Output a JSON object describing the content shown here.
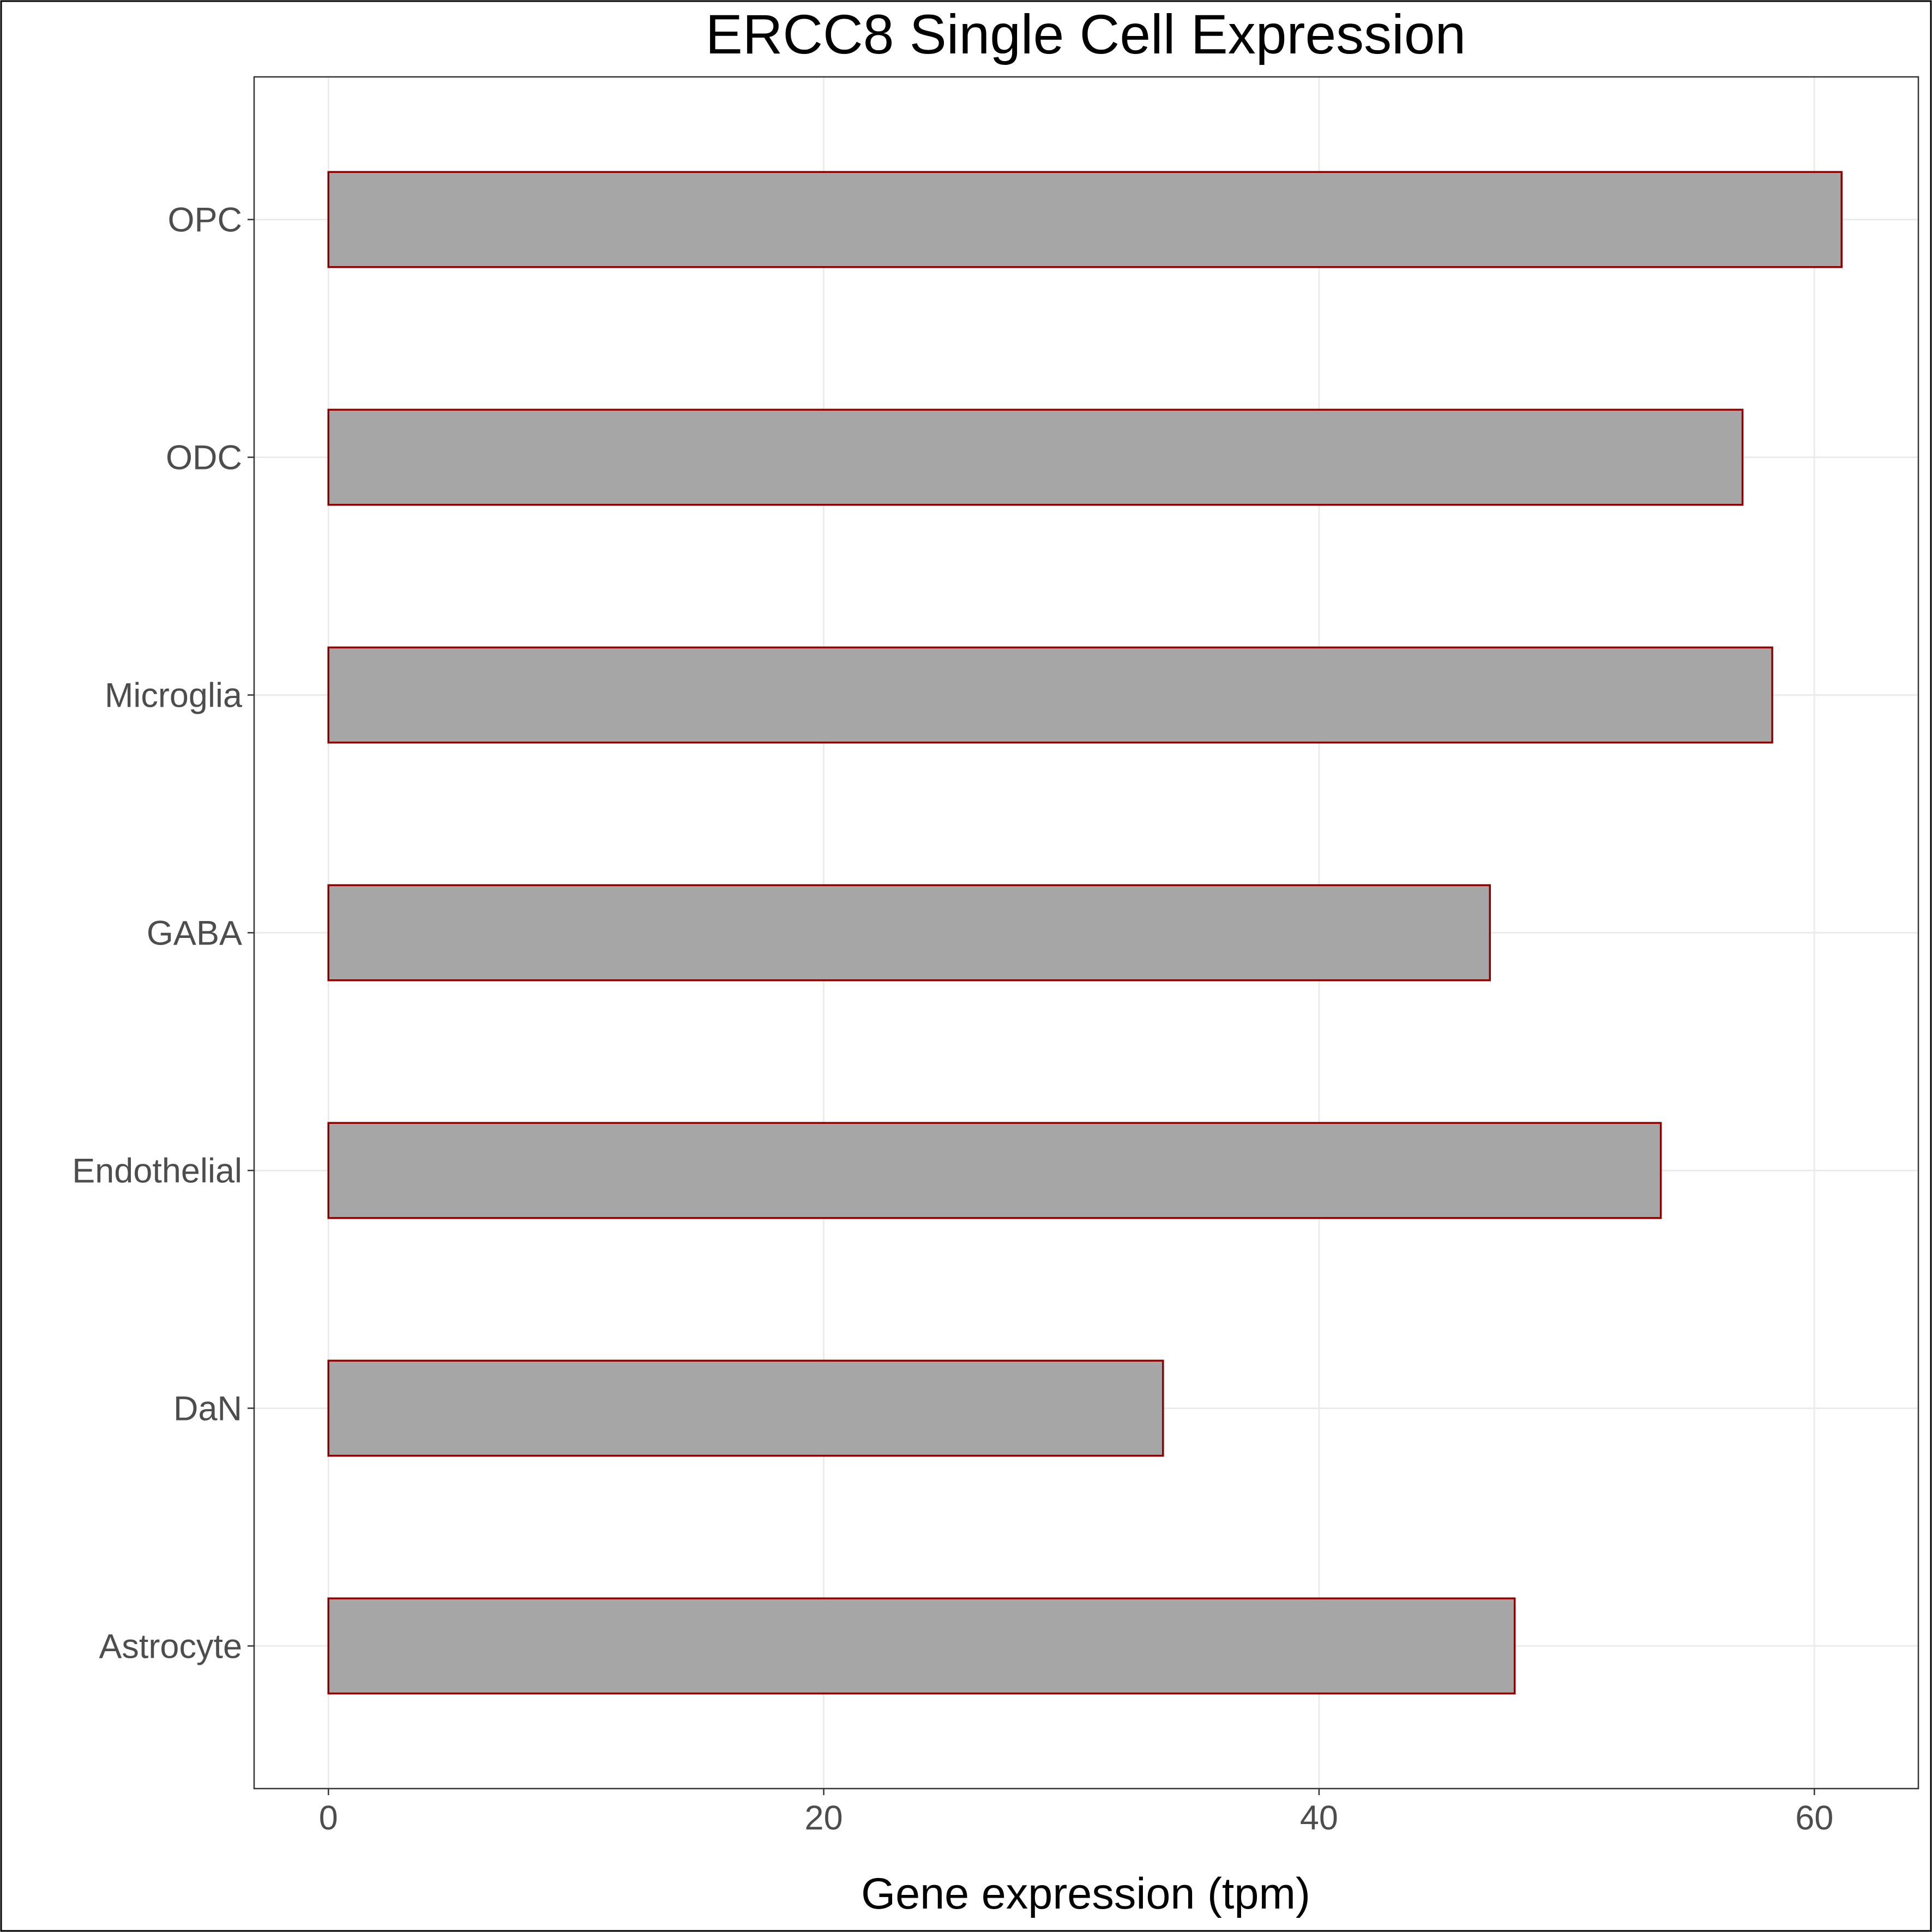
{
  "chart_data": {
    "type": "bar",
    "orientation": "horizontal",
    "title": "ERCC8 Single Cell Expression",
    "xlabel": "Gene expression (tpm)",
    "ylabel": "",
    "categories": [
      "OPC",
      "ODC",
      "Microglia",
      "GABA",
      "Endothelial",
      "DaN",
      "Astrocyte"
    ],
    "values": [
      61.1,
      57.1,
      58.3,
      46.9,
      53.8,
      33.7,
      47.9
    ],
    "xlim": [
      -3,
      64.2
    ],
    "xticks": [
      0,
      20,
      40,
      60
    ],
    "xtick_labels": [
      "0",
      "20",
      "40",
      "60"
    ],
    "grid": true,
    "bar_fill": "#a6a6a6",
    "bar_stroke": "#8b0000",
    "gridline_color": "#ebebeb"
  }
}
